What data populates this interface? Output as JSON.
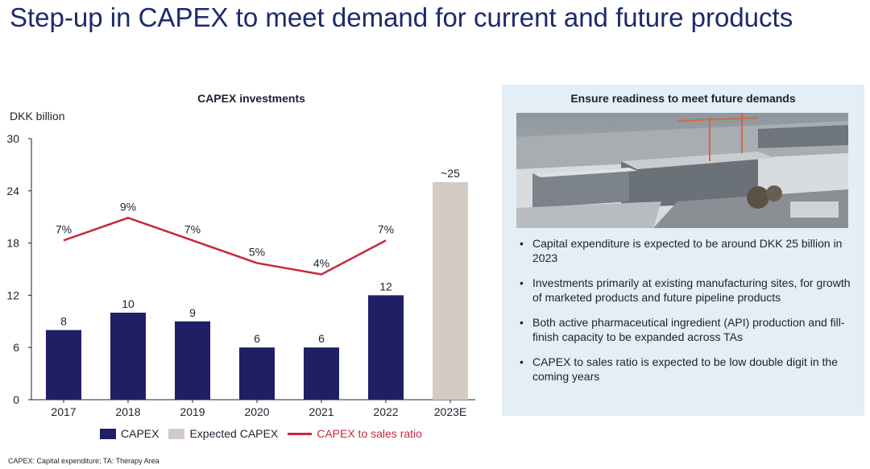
{
  "page": {
    "title": "Step-up in CAPEX to meet demand for current and future products",
    "footnote": "CAPEX: Capital expenditure; TA: Therapy Area"
  },
  "chart_data": {
    "type": "bar",
    "title": "CAPEX investments",
    "ylabel": "DKK billion",
    "xlabel": "",
    "ylim": [
      0,
      30
    ],
    "yticks": [
      0,
      6,
      12,
      18,
      24,
      30
    ],
    "categories": [
      "2017",
      "2018",
      "2019",
      "2020",
      "2021",
      "2022",
      "2023E"
    ],
    "series": [
      {
        "name": "CAPEX",
        "type": "bar",
        "color": "#1f1f66",
        "values": [
          8,
          10,
          9,
          6,
          6,
          12,
          null
        ],
        "labels": [
          "8",
          "10",
          "9",
          "6",
          "6",
          "12",
          ""
        ]
      },
      {
        "name": "Expected CAPEX",
        "type": "bar",
        "color": "#d3cbc4",
        "values": [
          null,
          null,
          null,
          null,
          null,
          null,
          25
        ],
        "labels": [
          "",
          "",
          "",
          "",
          "",
          "",
          "~25"
        ]
      },
      {
        "name": "CAPEX to sales ratio",
        "type": "line",
        "color": "#c8283e",
        "values_pct": [
          7,
          9,
          7,
          5,
          4,
          7,
          null
        ],
        "labels": [
          "7%",
          "9%",
          "7%",
          "5%",
          "4%",
          "7%",
          ""
        ]
      }
    ],
    "legend": [
      "CAPEX",
      "Expected CAPEX",
      "CAPEX to sales ratio"
    ]
  },
  "panel": {
    "title": "Ensure readiness to meet future demands",
    "bullets": [
      "Capital expenditure is expected to be around DKK 25 billion in 2023",
      "Investments primarily at existing manufacturing sites, for growth of marketed products and future pipeline products",
      "Both active pharmaceutical ingredient (API) production and fill-finish capacity to be expanded across TAs",
      "CAPEX to sales ratio is expected to be low double digit in the coming years"
    ]
  }
}
